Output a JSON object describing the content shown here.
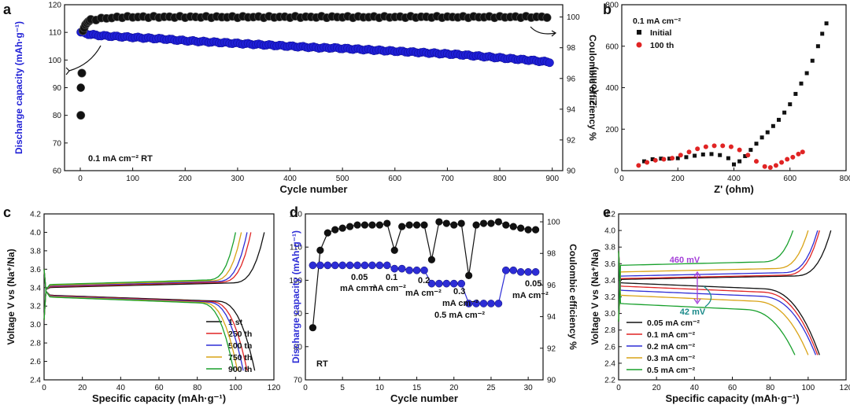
{
  "chart_data": [
    {
      "panel": "a",
      "type": "scatter",
      "note": "0.1 mA cm⁻²   RT",
      "xlabel": "Cycle number",
      "ylabel": "Discharge capacity (mAh·g⁻¹)",
      "y2label": "Coulombic  efficiency %",
      "xlim": [
        -30,
        920
      ],
      "ylim": [
        60,
        120
      ],
      "y2lim": [
        90,
        100.8
      ],
      "xticks": [
        "0",
        "100",
        "200",
        "300",
        "400",
        "500",
        "600",
        "700",
        "800",
        "900"
      ],
      "yticks": [
        "60",
        "70",
        "80",
        "90",
        "100",
        "110",
        "120"
      ],
      "y2ticks": [
        "90",
        "92",
        "94",
        "96",
        "98",
        "100"
      ],
      "series": [
        {
          "axis": "left",
          "color": "#1f1fd6",
          "x": [
            1,
            20,
            40,
            60,
            80,
            100,
            120,
            140,
            160,
            180,
            200,
            220,
            240,
            260,
            280,
            300,
            320,
            340,
            360,
            380,
            400,
            420,
            440,
            460,
            480,
            500,
            520,
            540,
            560,
            580,
            600,
            620,
            640,
            660,
            680,
            700,
            720,
            740,
            760,
            780,
            800,
            820,
            840,
            860,
            880,
            900
          ],
          "y": [
            110,
            109.2,
            108.8,
            108.6,
            108.4,
            108.2,
            108,
            107.8,
            107.6,
            107.3,
            107,
            106.8,
            106.6,
            106.4,
            106.2,
            106,
            105.8,
            105.6,
            105.4,
            105.2,
            105,
            104.8,
            104.6,
            104.4,
            104.4,
            104.2,
            104,
            103.8,
            103.6,
            103.4,
            103.2,
            103,
            102.8,
            102.6,
            102.4,
            102.2,
            102,
            101.7,
            101.4,
            101.1,
            100.8,
            100.5,
            100.2,
            99.9,
            99.5,
            99.2
          ]
        },
        {
          "axis": "right",
          "color": "#111111",
          "x": [
            1,
            5,
            10,
            15,
            20,
            40,
            60,
            80,
            100,
            200,
            300,
            400,
            500,
            600,
            700,
            800,
            900
          ],
          "y": [
            93.6,
            99.1,
            99.5,
            99.7,
            99.8,
            99.9,
            99.95,
            100,
            100,
            100,
            100,
            100,
            100,
            100,
            100,
            100,
            100
          ]
        }
      ]
    },
    {
      "panel": "b",
      "type": "scatter",
      "xlabel": "Z' (ohm)",
      "ylabel": "-Z'' (ohm)",
      "xlim": [
        0,
        800
      ],
      "ylim": [
        0,
        800
      ],
      "xticks": [
        "0",
        "200",
        "400",
        "600",
        "800"
      ],
      "yticks": [
        "0",
        "200",
        "400",
        "600",
        "800"
      ],
      "legend_title": "0.1 mA cm⁻²",
      "legend": "top-left",
      "series": [
        {
          "name": "Initial",
          "color": "#111111",
          "marker": "square",
          "x": [
            80,
            110,
            140,
            170,
            200,
            230,
            260,
            290,
            320,
            350,
            380,
            400,
            420,
            440,
            460,
            480,
            500,
            520,
            540,
            560,
            580,
            600,
            620,
            640,
            660,
            680,
            700,
            715,
            730
          ],
          "y": [
            45,
            55,
            58,
            58,
            60,
            65,
            72,
            78,
            80,
            75,
            60,
            30,
            45,
            70,
            100,
            130,
            160,
            185,
            215,
            245,
            280,
            320,
            370,
            420,
            470,
            530,
            600,
            660,
            710
          ]
        },
        {
          "name": "100 th",
          "color": "#e02424",
          "marker": "circle",
          "x": [
            60,
            90,
            120,
            150,
            180,
            210,
            240,
            270,
            300,
            330,
            360,
            390,
            420,
            450,
            480,
            510,
            530,
            550,
            570,
            590,
            610,
            630,
            645
          ],
          "y": [
            25,
            40,
            50,
            55,
            60,
            75,
            90,
            105,
            115,
            120,
            120,
            115,
            100,
            75,
            45,
            20,
            15,
            25,
            40,
            55,
            65,
            80,
            90
          ]
        }
      ]
    },
    {
      "panel": "c",
      "type": "line",
      "xlabel": "Specific capacity (mAh·g⁻¹)",
      "ylabel": "Voltage V vs (Na⁺/Na)",
      "xlim": [
        0,
        120
      ],
      "ylim": [
        2.4,
        4.2
      ],
      "xticks": [
        "0",
        "20",
        "40",
        "60",
        "80",
        "100",
        "120"
      ],
      "yticks": [
        "2.4",
        "2.6",
        "2.8",
        "3.0",
        "3.2",
        "3.4",
        "3.6",
        "3.8",
        "4.0",
        "4.2"
      ],
      "legend": "bottom-right",
      "series": [
        {
          "name": "1 st",
          "color": "#111111",
          "charge_end": 115,
          "discharge_end": 110
        },
        {
          "name": "250 th",
          "color": "#e02424",
          "charge_end": 108,
          "discharge_end": 106
        },
        {
          "name": "500 th",
          "color": "#2d2dd6",
          "charge_end": 106,
          "discharge_end": 104
        },
        {
          "name": "750 th",
          "color": "#d9a316",
          "charge_end": 103,
          "discharge_end": 101
        },
        {
          "name": "900 th",
          "color": "#18a02c",
          "charge_end": 100,
          "discharge_end": 99
        }
      ]
    },
    {
      "panel": "d",
      "type": "scatter",
      "note": "RT",
      "xlabel": "Cycle number",
      "ylabel": "Discharge capacity (mAh·g⁻¹)",
      "y2label": "Coulombic  efficiency %",
      "xlim": [
        0,
        32
      ],
      "ylim": [
        70,
        120
      ],
      "y2lim": [
        90,
        100.5
      ],
      "xticks": [
        "0",
        "5",
        "10",
        "15",
        "20",
        "25",
        "30"
      ],
      "yticks": [
        "70",
        "80",
        "90",
        "100",
        "110",
        "120"
      ],
      "y2ticks": [
        "90",
        "92",
        "94",
        "96",
        "98",
        "100"
      ],
      "rate_labels": [
        "0.05",
        "mA cm⁻²",
        "0.1",
        "mA cm⁻²",
        "0.2",
        "mA cm⁻²",
        "0.3",
        "mA cm⁻²",
        "0.5 mA cm⁻²",
        "0.05",
        "mA cm⁻²"
      ],
      "series": [
        {
          "axis": "left",
          "color": "#2d2dd6",
          "x": [
            1,
            2,
            3,
            4,
            5,
            6,
            7,
            8,
            9,
            10,
            11,
            12,
            13,
            14,
            15,
            16,
            17,
            18,
            19,
            20,
            21,
            22,
            23,
            24,
            25,
            26,
            27,
            28,
            29,
            30,
            31
          ],
          "y": [
            104.5,
            104.5,
            104.5,
            104.5,
            104.5,
            104.5,
            104.5,
            104.5,
            104.5,
            104.5,
            104.5,
            103.5,
            103.5,
            103,
            103,
            103,
            99,
            99,
            99,
            99,
            99,
            93,
            93,
            93,
            93,
            93,
            103,
            103,
            102.5,
            102.5,
            102.5
          ]
        },
        {
          "axis": "right",
          "color": "#111111",
          "x": [
            1,
            2,
            3,
            4,
            5,
            6,
            7,
            8,
            9,
            10,
            11,
            12,
            13,
            14,
            15,
            16,
            17,
            18,
            19,
            20,
            21,
            22,
            23,
            24,
            25,
            26,
            27,
            28,
            29,
            30,
            31
          ],
          "y": [
            93.3,
            98.2,
            99.3,
            99.5,
            99.6,
            99.7,
            99.8,
            99.8,
            99.8,
            99.8,
            99.9,
            98.2,
            99.7,
            99.8,
            99.8,
            99.8,
            97.6,
            100,
            99.9,
            99.8,
            99.9,
            96.6,
            99.8,
            99.9,
            99.9,
            100,
            99.8,
            99.7,
            99.6,
            99.5,
            99.5
          ]
        }
      ]
    },
    {
      "panel": "e",
      "type": "line",
      "xlabel": "Specific capacity (mAh·g⁻¹)",
      "ylabel": "Voltage V vs (Na⁺/Na)",
      "xlim": [
        0,
        120
      ],
      "ylim": [
        2.2,
        4.2
      ],
      "xticks": [
        "0",
        "20",
        "40",
        "60",
        "80",
        "100",
        "120"
      ],
      "yticks": [
        "2.2",
        "2.4",
        "2.6",
        "2.8",
        "3.0",
        "3.2",
        "3.4",
        "3.6",
        "3.8",
        "4.0",
        "4.2"
      ],
      "annotations": [
        "460 mV",
        "42 mV"
      ],
      "legend": "bottom-left",
      "series": [
        {
          "name": "0.05 mA cm⁻²",
          "color": "#111111",
          "charge_end": 112,
          "discharge_end": 106,
          "charge_v": 3.41,
          "discharge_v": 3.37
        },
        {
          "name": "0.1  mA cm⁻²",
          "color": "#e02424",
          "charge_end": 106,
          "discharge_end": 105,
          "charge_v": 3.42,
          "discharge_v": 3.33
        },
        {
          "name": "0.2  mA cm⁻²",
          "color": "#2d2dd6",
          "charge_end": 105,
          "discharge_end": 104,
          "charge_v": 3.45,
          "discharge_v": 3.28
        },
        {
          "name": "0.3  mA cm⁻²",
          "color": "#d9a316",
          "charge_end": 100,
          "discharge_end": 100,
          "charge_v": 3.5,
          "discharge_v": 3.22
        },
        {
          "name": "0.5  mA cm⁻²",
          "color": "#18a02c",
          "charge_end": 92,
          "discharge_end": 93,
          "charge_v": 3.58,
          "discharge_v": 3.12
        }
      ]
    }
  ],
  "panel_labels": [
    "a",
    "b",
    "c",
    "d",
    "e"
  ]
}
